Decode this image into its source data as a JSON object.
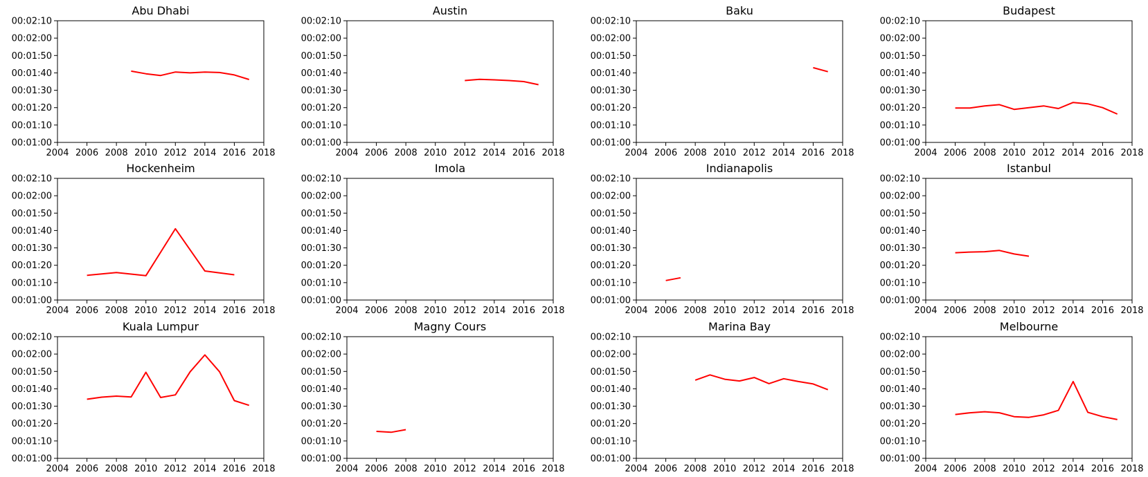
{
  "chart_data": [
    {
      "type": "line",
      "title": "Abu Dhabi",
      "xlim": [
        2004,
        2018
      ],
      "ylim": [
        60,
        130
      ],
      "xticks": [
        "2004",
        "2006",
        "2008",
        "2010",
        "2012",
        "2014",
        "2016",
        "2018"
      ],
      "yticks": [
        "00:01:00",
        "00:01:10",
        "00:01:20",
        "00:01:30",
        "00:01:40",
        "00:01:50",
        "00:02:00",
        "00:02:10"
      ],
      "color": "#ff0000",
      "x": [
        2009,
        2010,
        2011,
        2012,
        2013,
        2014,
        2015,
        2016,
        2017
      ],
      "y": [
        101,
        99.5,
        98.5,
        100.5,
        100,
        100.5,
        100.2,
        98.8,
        96.2
      ]
    },
    {
      "type": "line",
      "title": "Austin",
      "xlim": [
        2004,
        2018
      ],
      "ylim": [
        60,
        130
      ],
      "xticks": [
        "2004",
        "2006",
        "2008",
        "2010",
        "2012",
        "2014",
        "2016",
        "2018"
      ],
      "yticks": [
        "00:01:00",
        "00:01:10",
        "00:01:20",
        "00:01:30",
        "00:01:40",
        "00:01:50",
        "00:02:00",
        "00:02:10"
      ],
      "color": "#ff0000",
      "x": [
        2012,
        2013,
        2014,
        2015,
        2016,
        2017
      ],
      "y": [
        95.6,
        96.3,
        96,
        95.6,
        95,
        93.2
      ]
    },
    {
      "type": "line",
      "title": "Baku",
      "xlim": [
        2004,
        2018
      ],
      "ylim": [
        60,
        130
      ],
      "xticks": [
        "2004",
        "2006",
        "2008",
        "2010",
        "2012",
        "2014",
        "2016",
        "2018"
      ],
      "yticks": [
        "00:01:00",
        "00:01:10",
        "00:01:20",
        "00:01:30",
        "00:01:40",
        "00:01:50",
        "00:02:00",
        "00:02:10"
      ],
      "color": "#ff0000",
      "x": [
        2016,
        2017
      ],
      "y": [
        103,
        100.7
      ]
    },
    {
      "type": "line",
      "title": "Budapest",
      "xlim": [
        2004,
        2018
      ],
      "ylim": [
        60,
        130
      ],
      "xticks": [
        "2004",
        "2006",
        "2008",
        "2010",
        "2012",
        "2014",
        "2016",
        "2018"
      ],
      "yticks": [
        "00:01:00",
        "00:01:10",
        "00:01:20",
        "00:01:30",
        "00:01:40",
        "00:01:50",
        "00:02:00",
        "00:02:10"
      ],
      "color": "#ff0000",
      "x": [
        2006,
        2007,
        2008,
        2009,
        2010,
        2011,
        2012,
        2013,
        2014,
        2015,
        2016,
        2017
      ],
      "y": [
        79.8,
        79.8,
        81,
        81.7,
        79,
        80,
        81,
        79.5,
        83,
        82.2,
        80,
        76.3
      ]
    },
    {
      "type": "line",
      "title": "Hockenheim",
      "xlim": [
        2004,
        2018
      ],
      "ylim": [
        60,
        130
      ],
      "xticks": [
        "2004",
        "2006",
        "2008",
        "2010",
        "2012",
        "2014",
        "2016",
        "2018"
      ],
      "yticks": [
        "00:01:00",
        "00:01:10",
        "00:01:20",
        "00:01:30",
        "00:01:40",
        "00:01:50",
        "00:02:00",
        "00:02:10"
      ],
      "color": "#ff0000",
      "x": [
        2006,
        2008,
        2010,
        2012,
        2014,
        2016
      ],
      "y": [
        74.2,
        75.8,
        74,
        101,
        76.7,
        74.5
      ]
    },
    {
      "type": "line",
      "title": "Imola",
      "xlim": [
        2004,
        2018
      ],
      "ylim": [
        60,
        130
      ],
      "xticks": [
        "2004",
        "2006",
        "2008",
        "2010",
        "2012",
        "2014",
        "2016",
        "2018"
      ],
      "yticks": [
        "00:01:00",
        "00:01:10",
        "00:01:20",
        "00:01:30",
        "00:01:40",
        "00:01:50",
        "00:02:00",
        "00:02:10"
      ],
      "color": "#ff0000",
      "x": [],
      "y": []
    },
    {
      "type": "line",
      "title": "Indianapolis",
      "xlim": [
        2004,
        2018
      ],
      "ylim": [
        60,
        130
      ],
      "xticks": [
        "2004",
        "2006",
        "2008",
        "2010",
        "2012",
        "2014",
        "2016",
        "2018"
      ],
      "yticks": [
        "00:01:00",
        "00:01:10",
        "00:01:20",
        "00:01:30",
        "00:01:40",
        "00:01:50",
        "00:02:00",
        "00:02:10"
      ],
      "color": "#ff0000",
      "x": [
        2006,
        2007
      ],
      "y": [
        71.2,
        72.8
      ]
    },
    {
      "type": "line",
      "title": "Istanbul",
      "xlim": [
        2004,
        2018
      ],
      "ylim": [
        60,
        130
      ],
      "xticks": [
        "2004",
        "2006",
        "2008",
        "2010",
        "2012",
        "2014",
        "2016",
        "2018"
      ],
      "yticks": [
        "00:01:00",
        "00:01:10",
        "00:01:20",
        "00:01:30",
        "00:01:40",
        "00:01:50",
        "00:02:00",
        "00:02:10"
      ],
      "color": "#ff0000",
      "x": [
        2006,
        2007,
        2008,
        2009,
        2010,
        2011
      ],
      "y": [
        87.2,
        87.6,
        87.8,
        88.5,
        86.5,
        85.2
      ]
    },
    {
      "type": "line",
      "title": "Kuala Lumpur",
      "xlim": [
        2004,
        2018
      ],
      "ylim": [
        60,
        130
      ],
      "xticks": [
        "2004",
        "2006",
        "2008",
        "2010",
        "2012",
        "2014",
        "2016",
        "2018"
      ],
      "yticks": [
        "00:01:00",
        "00:01:10",
        "00:01:20",
        "00:01:30",
        "00:01:40",
        "00:01:50",
        "00:02:00",
        "00:02:10"
      ],
      "color": "#ff0000",
      "x": [
        2006,
        2007,
        2008,
        2009,
        2010,
        2011,
        2012,
        2013,
        2014,
        2015,
        2016,
        2017
      ],
      "y": [
        94,
        95.2,
        95.8,
        95.3,
        109.5,
        95,
        96.5,
        109.8,
        119.5,
        109.8,
        93.2,
        90.5
      ]
    },
    {
      "type": "line",
      "title": "Magny Cours",
      "xlim": [
        2004,
        2018
      ],
      "ylim": [
        60,
        130
      ],
      "xticks": [
        "2004",
        "2006",
        "2008",
        "2010",
        "2012",
        "2014",
        "2016",
        "2018"
      ],
      "yticks": [
        "00:01:00",
        "00:01:10",
        "00:01:20",
        "00:01:30",
        "00:01:40",
        "00:01:50",
        "00:02:00",
        "00:02:10"
      ],
      "color": "#ff0000",
      "x": [
        2006,
        2007,
        2008
      ],
      "y": [
        75.5,
        75,
        76.5
      ]
    },
    {
      "type": "line",
      "title": "Marina Bay",
      "xlim": [
        2004,
        2018
      ],
      "ylim": [
        60,
        130
      ],
      "xticks": [
        "2004",
        "2006",
        "2008",
        "2010",
        "2012",
        "2014",
        "2016",
        "2018"
      ],
      "yticks": [
        "00:01:00",
        "00:01:10",
        "00:01:20",
        "00:01:30",
        "00:01:40",
        "00:01:50",
        "00:02:00",
        "00:02:10"
      ],
      "color": "#ff0000",
      "x": [
        2008,
        2009,
        2010,
        2011,
        2012,
        2013,
        2014,
        2015,
        2016,
        2017
      ],
      "y": [
        105,
        108,
        105.5,
        104.5,
        106.5,
        103,
        105.8,
        104.2,
        102.8,
        99.5
      ]
    },
    {
      "type": "line",
      "title": "Melbourne",
      "xlim": [
        2004,
        2018
      ],
      "ylim": [
        60,
        130
      ],
      "xticks": [
        "2004",
        "2006",
        "2008",
        "2010",
        "2012",
        "2014",
        "2016",
        "2018"
      ],
      "yticks": [
        "00:01:00",
        "00:01:10",
        "00:01:20",
        "00:01:30",
        "00:01:40",
        "00:01:50",
        "00:02:00",
        "00:02:10"
      ],
      "color": "#ff0000",
      "x": [
        2006,
        2007,
        2008,
        2009,
        2010,
        2011,
        2012,
        2013,
        2014,
        2015,
        2016,
        2017
      ],
      "y": [
        85.2,
        86.2,
        86.8,
        86.2,
        84,
        83.6,
        85,
        87.6,
        104.2,
        86.5,
        84,
        82.3
      ]
    }
  ]
}
